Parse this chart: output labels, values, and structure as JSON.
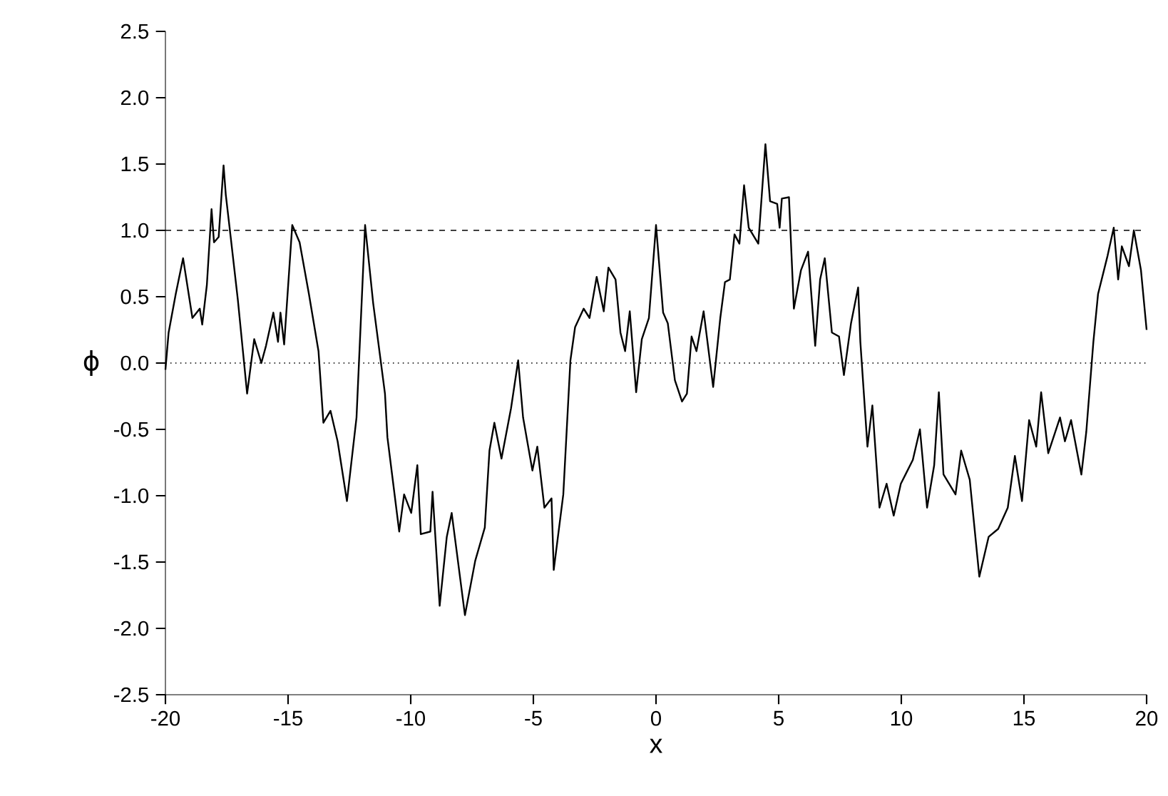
{
  "chart_data": {
    "type": "line",
    "xlabel": "x",
    "ylabel": "ϕ",
    "xlim": [
      -20,
      20
    ],
    "xticks": [
      -20,
      -15,
      -10,
      -5,
      0,
      5,
      10,
      15,
      20
    ],
    "ylim": [
      -2.5,
      2.5
    ],
    "yticks": [
      {
        "value": -2.5,
        "label": "-2.5"
      },
      {
        "value": -2,
        "label": "-2.0"
      },
      {
        "value": -1.5,
        "label": "-1.5"
      },
      {
        "value": -1,
        "label": "-1.0"
      },
      {
        "value": -0.5,
        "label": "-0.5"
      },
      {
        "value": 0,
        "label": "0.0"
      },
      {
        "value": 0.5,
        "label": "0.5"
      },
      {
        "value": 1,
        "label": "1.0"
      },
      {
        "value": 1.5,
        "label": "1.5"
      },
      {
        "value": 2,
        "label": "2.0"
      },
      {
        "value": 2.5,
        "label": "2.5"
      }
    ],
    "grid": false,
    "marker": "none",
    "line_style": "solid",
    "ref_lines": [
      {
        "axis": "y",
        "value": 1,
        "color": "#000000",
        "line_style": "dashed"
      },
      {
        "axis": "y",
        "value": 0,
        "color": "#000000",
        "line_style": "dotted"
      }
    ],
    "series": [
      {
        "color": "#000000",
        "x": [
          -20,
          -19.87,
          -19.58,
          -19.28,
          -18.9,
          -18.6,
          -18.5,
          -18.31,
          -18.12,
          -18.02,
          -17.83,
          -17.63,
          -17.54,
          -17.34,
          -17.05,
          -16.67,
          -16.38,
          -16.09,
          -15.9,
          -15.6,
          -15.41,
          -15.31,
          -15.16,
          -14.83,
          -14.53,
          -14.15,
          -13.76,
          -13.56,
          -13.27,
          -12.98,
          -12.6,
          -12.21,
          -11.86,
          -11.53,
          -11.05,
          -10.95,
          -10.76,
          -10.47,
          -10.27,
          -9.98,
          -9.73,
          -9.59,
          -9.2,
          -9.11,
          -8.82,
          -8.53,
          -8.33,
          -8.14,
          -7.79,
          -7.37,
          -6.98,
          -6.79,
          -6.59,
          -6.3,
          -5.91,
          -5.62,
          -5.42,
          -5.04,
          -4.84,
          -4.55,
          -4.26,
          -4.17,
          -3.78,
          -3.49,
          -3.3,
          -2.95,
          -2.71,
          -2.42,
          -2.13,
          -1.94,
          -1.65,
          -1.45,
          -1.26,
          -1.07,
          -0.81,
          -0.58,
          -0.29,
          0.0,
          0.29,
          0.48,
          0.77,
          1.06,
          1.26,
          1.45,
          1.65,
          1.94,
          2.33,
          2.62,
          2.81,
          3.01,
          3.2,
          3.4,
          3.59,
          3.78,
          4.17,
          4.46,
          4.65,
          4.94,
          5.04,
          5.13,
          5.42,
          5.62,
          5.91,
          6.2,
          6.49,
          6.69,
          6.88,
          7.17,
          7.46,
          7.66,
          7.95,
          8.24,
          8.33,
          8.62,
          8.82,
          9.11,
          9.4,
          9.69,
          9.98,
          10.47,
          10.76,
          11.05,
          11.34,
          11.53,
          11.72,
          12.21,
          12.44,
          12.79,
          13.18,
          13.56,
          13.95,
          14.34,
          14.63,
          14.92,
          15.21,
          15.5,
          15.7,
          15.99,
          16.47,
          16.67,
          16.92,
          17.34,
          17.54,
          17.83,
          18.02,
          18.41,
          18.66,
          18.84,
          18.99,
          19.28,
          19.48,
          19.77,
          20
        ],
        "values": [
          -0.05,
          0.23,
          0.52,
          0.79,
          0.34,
          0.41,
          0.29,
          0.59,
          1.16,
          0.91,
          0.95,
          1.49,
          1.27,
          0.95,
          0.48,
          -0.23,
          0.18,
          0.0,
          0.13,
          0.38,
          0.16,
          0.38,
          0.14,
          1.04,
          0.91,
          0.52,
          0.09,
          -0.45,
          -0.36,
          -0.59,
          -1.04,
          -0.41,
          1.04,
          0.45,
          -0.23,
          -0.56,
          -0.84,
          -1.27,
          -0.99,
          -1.13,
          -0.77,
          -1.29,
          -1.27,
          -0.97,
          -1.83,
          -1.31,
          -1.13,
          -1.4,
          -1.9,
          -1.49,
          -1.24,
          -0.66,
          -0.45,
          -0.72,
          -0.34,
          0.02,
          -0.41,
          -0.81,
          -0.63,
          -1.09,
          -1.02,
          -1.56,
          -0.99,
          0.02,
          0.27,
          0.41,
          0.34,
          0.65,
          0.39,
          0.72,
          0.63,
          0.23,
          0.09,
          0.39,
          -0.22,
          0.18,
          0.34,
          1.04,
          0.38,
          0.3,
          -0.13,
          -0.29,
          -0.23,
          0.2,
          0.09,
          0.39,
          -0.18,
          0.34,
          0.61,
          0.63,
          0.97,
          0.9,
          1.34,
          1.02,
          0.9,
          1.65,
          1.22,
          1.2,
          1.02,
          1.24,
          1.25,
          0.41,
          0.7,
          0.84,
          0.13,
          0.63,
          0.79,
          0.23,
          0.2,
          -0.09,
          0.3,
          0.57,
          0.16,
          -0.63,
          -0.32,
          -1.09,
          -0.91,
          -1.15,
          -0.91,
          -0.73,
          -0.5,
          -1.09,
          -0.77,
          -0.22,
          -0.84,
          -0.99,
          -0.66,
          -0.88,
          -1.61,
          -1.31,
          -1.25,
          -1.09,
          -0.7,
          -1.04,
          -0.43,
          -0.63,
          -0.22,
          -0.68,
          -0.41,
          -0.59,
          -0.43,
          -0.84,
          -0.52,
          0.16,
          0.52,
          0.81,
          1.02,
          0.63,
          0.88,
          0.73,
          1.0,
          0.7,
          0.25
        ]
      }
    ]
  }
}
